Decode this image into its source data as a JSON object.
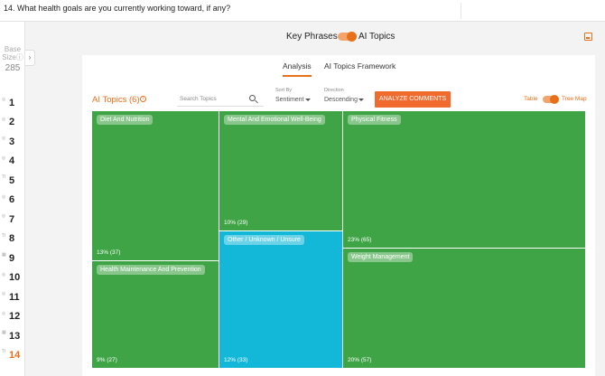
{
  "header": {
    "question": "14. What health goals are you currently working toward, if any?"
  },
  "sidebar": {
    "base_label": "Base Size",
    "base_value": "285",
    "questions": [
      "1",
      "2",
      "3",
      "4",
      "5",
      "6",
      "7",
      "8",
      "9",
      "10",
      "11",
      "12",
      "13",
      "14"
    ],
    "active_question": "14"
  },
  "view_toggle": {
    "left_label": "Key Phrases",
    "right_label": "AI Topics",
    "selected": "AI Topics"
  },
  "tabs": [
    {
      "label": "Analysis",
      "active": true
    },
    {
      "label": "AI Topics Framework",
      "active": false
    }
  ],
  "controls": {
    "title": "AI Topics (6)",
    "search_placeholder": "Search Topics",
    "sort_by_label": "Sort By",
    "sort_by_value": "Sentiment",
    "direction_label": "Direction",
    "direction_value": "Descending",
    "analyze_button": "ANALYZE COMMENTS",
    "table_label": "Table",
    "treemap_label": "Tree Map",
    "treemap_selected": true
  },
  "treemap": {
    "tiles": [
      {
        "name": "Diet And Nutrition",
        "value": "13% (37)",
        "color": "#3fa446"
      },
      {
        "name": "Health Maintenance And Prevention",
        "value": "9% (27)",
        "color": "#3fa446"
      },
      {
        "name": "Mental And Emotional Well-Being",
        "value": "10% (29)",
        "color": "#3fa446"
      },
      {
        "name": "Other / Unknown / Unsure",
        "value": "12% (33)",
        "color": "#13b7d8"
      },
      {
        "name": "Physical Fitness",
        "value": "23% (65)",
        "color": "#3fa446"
      },
      {
        "name": "Weight Management",
        "value": "20% (57)",
        "color": "#3fa446"
      }
    ]
  },
  "colors": {
    "accent": "#e8701a",
    "button": "#f26b2e",
    "green": "#3fa446",
    "blue": "#13b7d8"
  },
  "icons": {
    "expand": "chevron-right-icon",
    "scroll_down": "chevron-down-icon",
    "export": "export-icon",
    "search": "search-icon",
    "info": "info-icon"
  }
}
